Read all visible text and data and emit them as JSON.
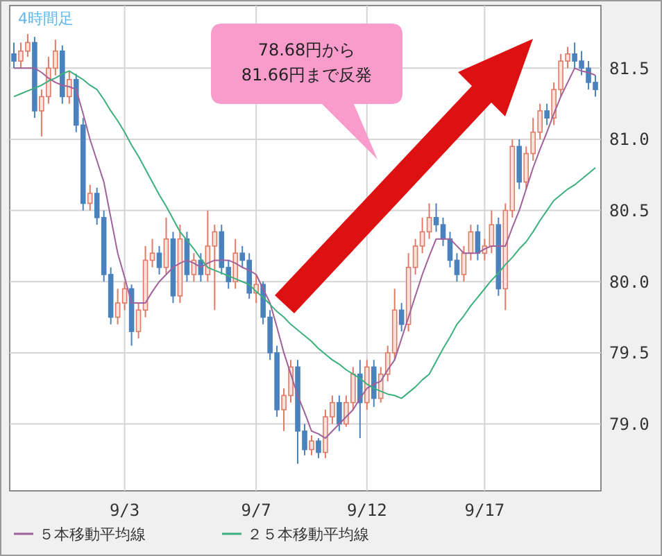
{
  "chart_data": {
    "type": "candlestick",
    "title": "4時間足",
    "annotations": [
      "78.68円から\n81.66円まで反発"
    ],
    "categories": [
      null,
      null,
      null,
      null,
      null,
      null,
      null,
      null,
      null,
      null,
      null,
      null,
      null,
      null,
      null,
      null,
      "9/3",
      null,
      null,
      null,
      null,
      null,
      null,
      null,
      null,
      null,
      null,
      null,
      null,
      null,
      null,
      null,
      null,
      null,
      null,
      "9/7",
      null,
      null,
      null,
      null,
      null,
      null,
      null,
      null,
      null,
      null,
      null,
      null,
      null,
      null,
      null,
      "9/12",
      null,
      null,
      null,
      null,
      null,
      null,
      null,
      null,
      null,
      null,
      null,
      null,
      null,
      null,
      null,
      null,
      "9/17",
      null,
      null,
      null,
      null,
      null,
      null,
      null,
      null,
      null,
      null,
      null,
      null,
      null,
      null,
      null,
      null
    ],
    "ohlc": [
      [
        81.6,
        81.68,
        81.5,
        81.55
      ],
      [
        81.55,
        81.68,
        81.5,
        81.62
      ],
      [
        81.62,
        81.74,
        81.58,
        81.68
      ],
      [
        81.68,
        81.72,
        81.15,
        81.2
      ],
      [
        81.2,
        81.35,
        81.02,
        81.3
      ],
      [
        81.3,
        81.58,
        81.25,
        81.5
      ],
      [
        81.5,
        81.7,
        81.45,
        81.62
      ],
      [
        81.62,
        81.66,
        81.25,
        81.3
      ],
      [
        81.3,
        81.48,
        81.25,
        81.42
      ],
      [
        81.42,
        81.46,
        81.05,
        81.1
      ],
      [
        81.1,
        81.15,
        80.5,
        80.55
      ],
      [
        80.55,
        80.68,
        80.5,
        80.62
      ],
      [
        80.62,
        80.66,
        80.4,
        80.45
      ],
      [
        80.45,
        80.5,
        80.0,
        80.05
      ],
      [
        80.05,
        80.1,
        79.7,
        79.75
      ],
      [
        79.75,
        79.95,
        79.7,
        79.85
      ],
      [
        79.85,
        80.0,
        79.8,
        79.95
      ],
      [
        79.95,
        79.98,
        79.55,
        79.65
      ],
      [
        79.65,
        79.85,
        79.6,
        79.8
      ],
      [
        79.8,
        80.25,
        79.75,
        80.15
      ],
      [
        80.15,
        80.3,
        80.1,
        80.2
      ],
      [
        80.2,
        80.25,
        80.05,
        80.1
      ],
      [
        80.1,
        80.45,
        80.05,
        80.3
      ],
      [
        80.3,
        80.35,
        79.85,
        79.9
      ],
      [
        79.9,
        80.4,
        79.85,
        80.3
      ],
      [
        80.3,
        80.35,
        80.0,
        80.05
      ],
      [
        80.05,
        80.2,
        80.0,
        80.15
      ],
      [
        80.15,
        80.2,
        80.0,
        80.05
      ],
      [
        80.05,
        80.5,
        80.0,
        80.25
      ],
      [
        80.25,
        80.4,
        79.8,
        80.35
      ],
      [
        80.35,
        80.4,
        80.05,
        80.1
      ],
      [
        80.1,
        80.15,
        79.95,
        80.0
      ],
      [
        80.0,
        80.3,
        79.95,
        80.2
      ],
      [
        80.2,
        80.25,
        80.1,
        80.15
      ],
      [
        80.15,
        80.2,
        79.88,
        79.92
      ],
      [
        79.92,
        80.05,
        79.85,
        79.98
      ],
      [
        79.98,
        80.0,
        79.7,
        79.75
      ],
      [
        79.75,
        79.8,
        79.45,
        79.5
      ],
      [
        79.5,
        79.55,
        79.05,
        79.1
      ],
      [
        79.1,
        79.25,
        78.95,
        79.2
      ],
      [
        79.2,
        79.45,
        79.15,
        79.4
      ],
      [
        79.4,
        79.45,
        78.72,
        78.95
      ],
      [
        78.95,
        79.0,
        78.78,
        78.82
      ],
      [
        78.82,
        78.92,
        78.78,
        78.88
      ],
      [
        78.88,
        78.9,
        78.76,
        78.8
      ],
      [
        78.8,
        79.1,
        78.76,
        79.05
      ],
      [
        79.05,
        79.2,
        79.0,
        79.15
      ],
      [
        79.15,
        79.2,
        78.95,
        79.0
      ],
      [
        79.0,
        79.2,
        78.98,
        79.15
      ],
      [
        79.15,
        79.4,
        79.1,
        79.35
      ],
      [
        79.35,
        79.45,
        78.9,
        79.15
      ],
      [
        79.15,
        79.45,
        79.1,
        79.4
      ],
      [
        79.4,
        79.45,
        79.12,
        79.18
      ],
      [
        79.18,
        79.4,
        79.15,
        79.35
      ],
      [
        79.35,
        79.55,
        79.3,
        79.5
      ],
      [
        79.5,
        79.95,
        79.45,
        79.8
      ],
      [
        79.8,
        79.85,
        79.65,
        79.7
      ],
      [
        79.7,
        80.2,
        79.65,
        80.1
      ],
      [
        80.1,
        80.3,
        80.05,
        80.25
      ],
      [
        80.25,
        80.45,
        80.2,
        80.35
      ],
      [
        80.35,
        80.55,
        80.3,
        80.45
      ],
      [
        80.45,
        80.55,
        80.35,
        80.4
      ],
      [
        80.4,
        80.45,
        80.25,
        80.3
      ],
      [
        80.3,
        80.35,
        80.1,
        80.15
      ],
      [
        80.15,
        80.2,
        80.0,
        80.05
      ],
      [
        80.05,
        80.25,
        80.0,
        80.2
      ],
      [
        80.2,
        80.4,
        80.15,
        80.35
      ],
      [
        80.35,
        80.4,
        80.15,
        80.2
      ],
      [
        80.2,
        80.3,
        80.15,
        80.25
      ],
      [
        80.25,
        80.5,
        80.2,
        80.4
      ],
      [
        80.4,
        80.45,
        79.9,
        79.95
      ],
      [
        79.95,
        80.55,
        79.8,
        80.5
      ],
      [
        80.5,
        81.0,
        80.45,
        80.95
      ],
      [
        80.95,
        81.0,
        80.65,
        80.7
      ],
      [
        80.7,
        80.95,
        80.65,
        80.9
      ],
      [
        80.9,
        81.15,
        80.85,
        81.05
      ],
      [
        81.05,
        81.25,
        81.0,
        81.2
      ],
      [
        81.2,
        81.25,
        81.1,
        81.15
      ],
      [
        81.15,
        81.4,
        81.1,
        81.35
      ],
      [
        81.35,
        81.6,
        81.3,
        81.55
      ],
      [
        81.55,
        81.65,
        81.5,
        81.6
      ],
      [
        81.6,
        81.68,
        81.5,
        81.55
      ],
      [
        81.55,
        81.62,
        81.45,
        81.5
      ],
      [
        81.5,
        81.55,
        81.35,
        81.4
      ],
      [
        81.4,
        81.45,
        81.3,
        81.35
      ]
    ],
    "series": [
      {
        "name": "５本移動平均線",
        "color": "#a0609a",
        "type": "line",
        "values": [
          81.5,
          81.5,
          81.5,
          81.5,
          81.47,
          81.43,
          81.4,
          81.38,
          81.37,
          81.35,
          81.18,
          81.0,
          80.85,
          80.7,
          80.45,
          80.2,
          80.03,
          79.85,
          79.85,
          79.85,
          79.93,
          80.0,
          80.05,
          80.1,
          80.13,
          80.15,
          80.13,
          80.1,
          80.13,
          80.15,
          80.15,
          80.15,
          80.13,
          80.1,
          80.08,
          80.05,
          79.95,
          79.85,
          79.68,
          79.5,
          79.35,
          79.2,
          79.08,
          78.95,
          78.93,
          78.9,
          78.95,
          79.0,
          79.05,
          79.1,
          79.18,
          79.25,
          79.28,
          79.3,
          79.38,
          79.45,
          79.6,
          79.75,
          79.9,
          80.05,
          80.18,
          80.3,
          80.3,
          80.3,
          80.25,
          80.2,
          80.2,
          80.2,
          80.23,
          80.25,
          80.25,
          80.25,
          80.38,
          80.5,
          80.65,
          80.8,
          80.93,
          81.05,
          81.18,
          81.3,
          81.4,
          81.5,
          81.48,
          81.47,
          81.45
        ]
      },
      {
        "name": "２５本移動平均線",
        "color": "#3cb07c",
        "type": "line",
        "values": [
          81.3,
          81.32,
          81.34,
          81.36,
          81.38,
          81.41,
          81.43,
          81.46,
          81.48,
          81.45,
          81.42,
          81.38,
          81.35,
          81.28,
          81.2,
          81.13,
          81.05,
          80.96,
          80.88,
          80.79,
          80.7,
          80.61,
          80.53,
          80.44,
          80.35,
          80.29,
          80.23,
          80.16,
          80.1,
          80.08,
          80.06,
          80.04,
          80.02,
          80.0,
          79.98,
          79.93,
          79.89,
          79.84,
          79.79,
          79.75,
          79.7,
          79.66,
          79.62,
          79.58,
          79.53,
          79.49,
          79.45,
          79.42,
          79.38,
          79.35,
          79.32,
          79.28,
          79.25,
          79.23,
          79.21,
          79.2,
          79.18,
          79.22,
          79.26,
          79.31,
          79.35,
          79.44,
          79.53,
          79.61,
          79.7,
          79.76,
          79.83,
          79.89,
          79.95,
          80.01,
          80.06,
          80.12,
          80.17,
          80.23,
          80.28,
          80.35,
          80.43,
          80.5,
          80.57,
          80.61,
          80.65,
          80.68,
          80.72,
          80.76,
          80.8
        ]
      }
    ],
    "ylim": [
      78.53,
      81.94
    ],
    "yticks": [
      {
        "value": 79,
        "label": "79.0"
      },
      {
        "value": 79.5,
        "label": "79.5"
      },
      {
        "value": 80,
        "label": "80.0"
      },
      {
        "value": 80.5,
        "label": "80.5"
      },
      {
        "value": 81,
        "label": "81.0"
      },
      {
        "value": 81.5,
        "label": "81.5"
      }
    ],
    "grid": true,
    "legend": "bottom"
  }
}
